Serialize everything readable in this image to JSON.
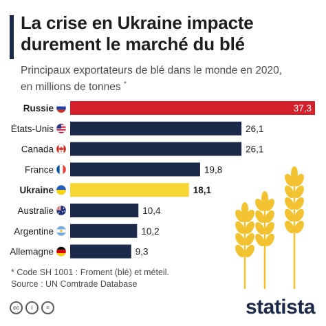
{
  "header": {
    "title_line1": "La crise en Ukraine impacte",
    "title_line2": "durement le marché du blé",
    "subtitle_line1": "Principaux exportateurs de blé dans le monde en 2020,",
    "subtitle_line2": "en millions de tonnes",
    "subtitle_mark": "*"
  },
  "chart_data": {
    "type": "bar",
    "orientation": "horizontal",
    "categories": [
      "Russie",
      "États-Unis",
      "Canada",
      "France",
      "Ukraine",
      "Australie",
      "Argentine",
      "Allemagne"
    ],
    "values": [
      37.3,
      26.1,
      26.1,
      19.8,
      18.1,
      10.4,
      10.2,
      9.3
    ],
    "value_labels": [
      "37,3",
      "26,1",
      "26,1",
      "19,8",
      "18,1",
      "10,4",
      "10,2",
      "9,3"
    ],
    "highlighted": [
      "Russie",
      "Ukraine"
    ],
    "xlim": [
      0,
      37.3
    ],
    "grid": false,
    "colors": {
      "default": "#1b2a4a",
      "Russie": "#d4202a",
      "Ukraine": "#f6d735"
    },
    "flags": [
      "russia-flag-icon",
      "usa-flag-icon",
      "canada-flag-icon",
      "france-flag-icon",
      "ukraine-flag-icon",
      "australia-flag-icon",
      "argentina-flag-icon",
      "germany-flag-icon"
    ]
  },
  "footnote": {
    "line1": "* Code SH 1001 : Froment (blé) et méteil.",
    "line2": "Source : UN Comtrade Database"
  },
  "footer": {
    "license_icons": [
      "cc-icon",
      "by-icon",
      "equal-icon"
    ],
    "license_glyphs": [
      "cc",
      "i",
      "="
    ],
    "brand": "statista"
  }
}
